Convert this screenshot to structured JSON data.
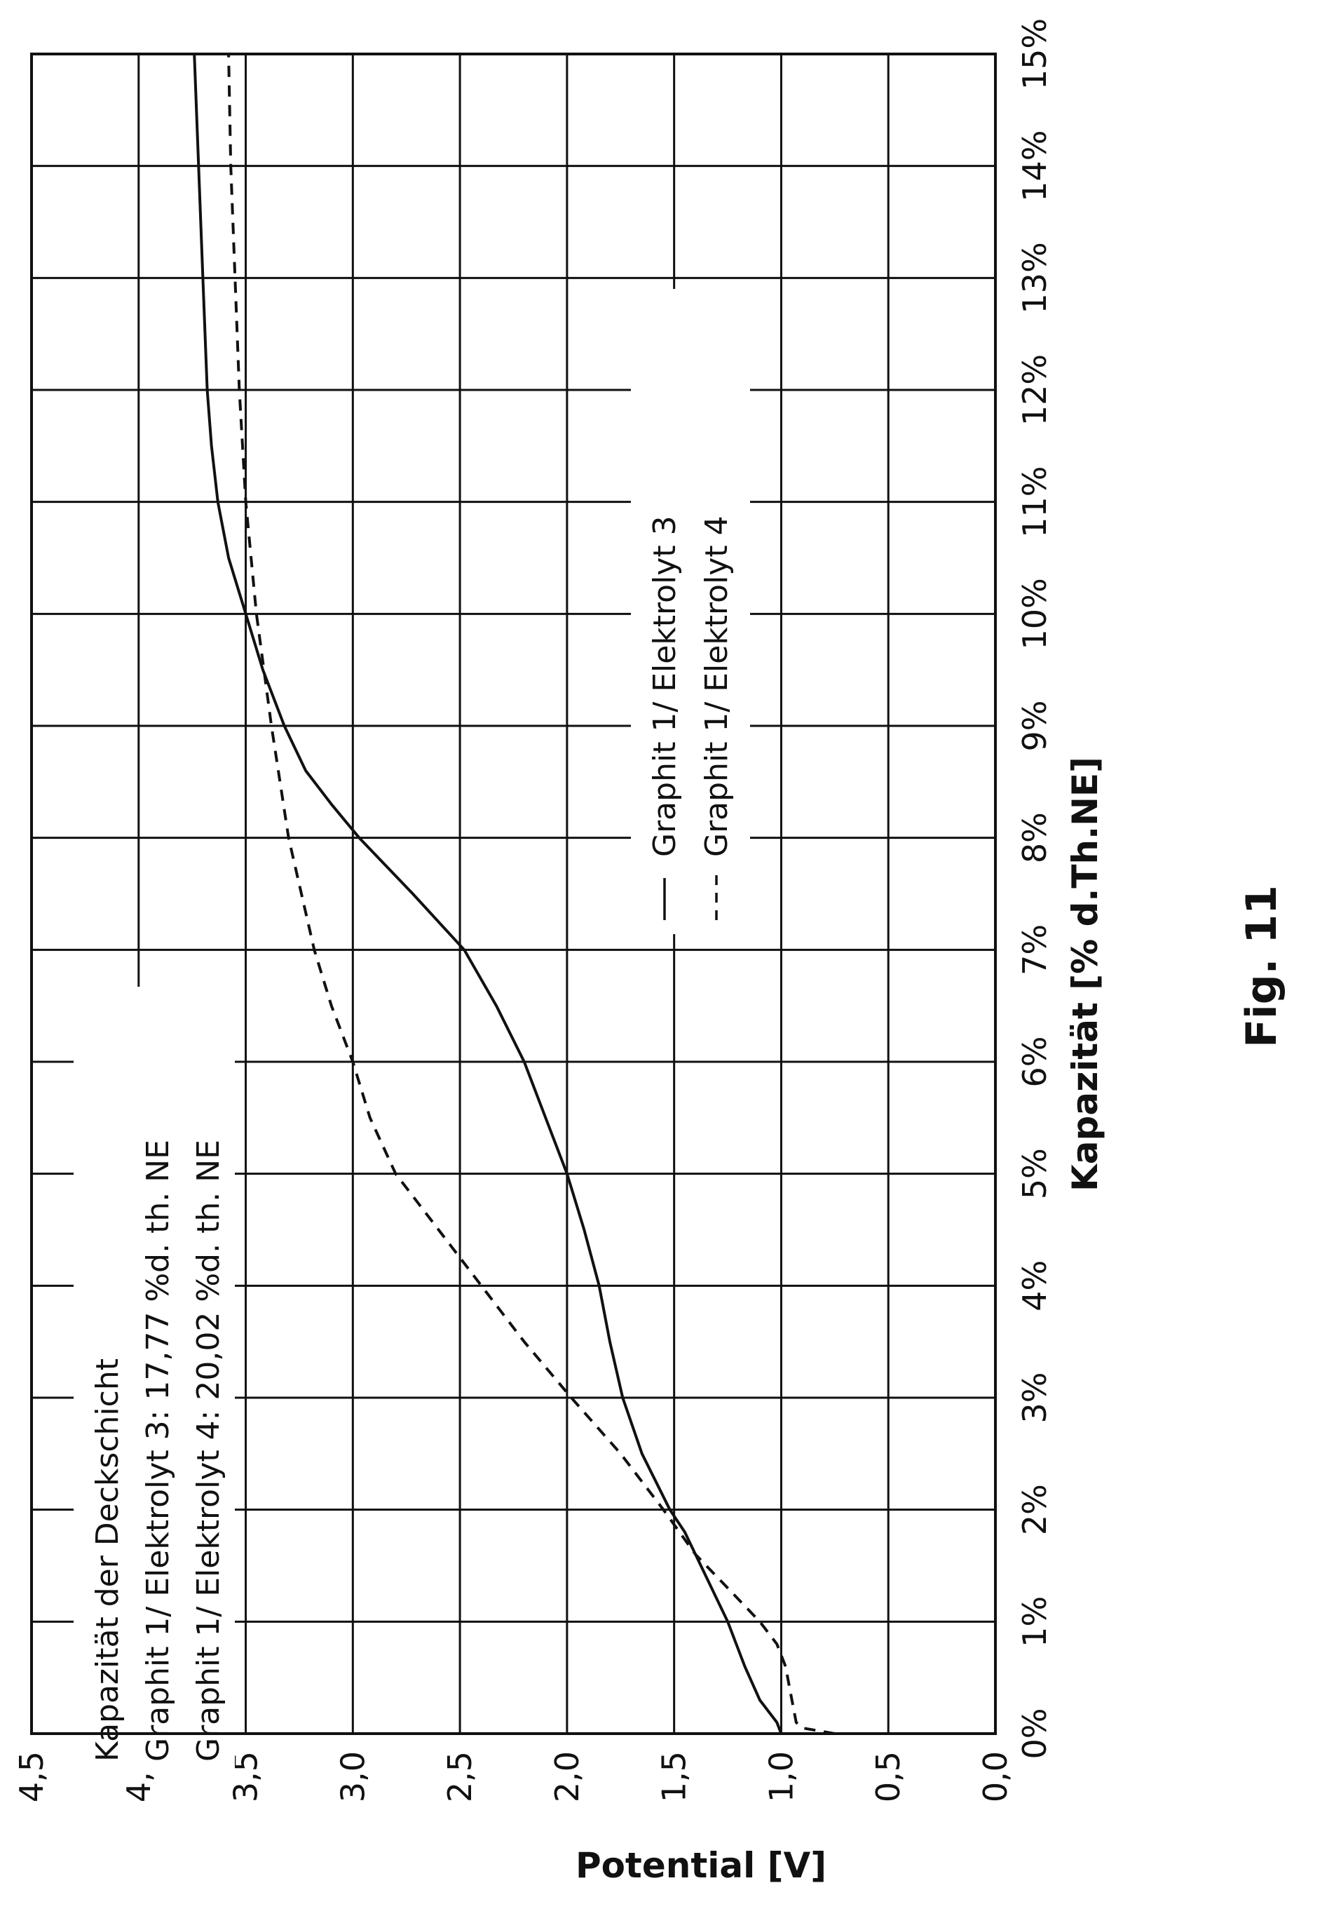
{
  "figure_label": "Fig. 11",
  "chart_data": {
    "type": "line",
    "orientation": "rotated 90° counter-clockwise (page portrait)",
    "xlabel": "Kapazität [% d.Th.NE]",
    "ylabel": "Potential [V]",
    "x_ticks": [
      "0%",
      "1%",
      "2%",
      "3%",
      "4%",
      "5%",
      "6%",
      "7%",
      "8%",
      "9%",
      "10%",
      "11%",
      "12%",
      "13%",
      "14%",
      "15%"
    ],
    "y_ticks": [
      "0,0",
      "0,5",
      "1,0",
      "1,5",
      "2,0",
      "2,5",
      "3,0",
      "3,5",
      "4,0",
      "4,5"
    ],
    "xlim": [
      0,
      15
    ],
    "ylim": [
      0,
      4.5
    ],
    "grid": true,
    "annotation": [
      "Kapazität der Deckschicht",
      "Graphit 1/ Elektrolyt 3:  17,77 %d. th. NE",
      "Graphit 1/ Elektrolyt 4:  20,02 %d. th. NE"
    ],
    "legend_position": "center",
    "series": [
      {
        "name": "Graphit 1/ Elektrolyt 3",
        "style": "solid",
        "x": [
          0,
          0.1,
          0.3,
          0.6,
          1.0,
          1.4,
          1.8,
          2.0,
          2.5,
          3.0,
          3.5,
          4.0,
          4.5,
          5.0,
          5.5,
          6.0,
          6.5,
          7.0,
          7.5,
          8.0,
          8.3,
          8.6,
          9.0,
          9.5,
          10.0,
          10.5,
          11.0,
          11.5,
          12.0,
          13.0,
          14.0,
          15.0
        ],
        "y": [
          1.0,
          1.02,
          1.1,
          1.17,
          1.25,
          1.35,
          1.45,
          1.52,
          1.65,
          1.74,
          1.8,
          1.85,
          1.92,
          2.0,
          2.1,
          2.2,
          2.33,
          2.48,
          2.72,
          2.97,
          3.1,
          3.22,
          3.32,
          3.42,
          3.5,
          3.58,
          3.63,
          3.66,
          3.68,
          3.7,
          3.72,
          3.74
        ]
      },
      {
        "name": "Graphit 1/ Elektrolyt 4",
        "style": "dashed",
        "x": [
          0,
          0.05,
          0.1,
          0.3,
          0.6,
          0.8,
          1.0,
          1.3,
          1.6,
          2.0,
          2.5,
          3.0,
          3.5,
          4.0,
          4.5,
          4.8,
          5.0,
          5.5,
          6.0,
          6.5,
          7.0,
          7.5,
          8.0,
          9.0,
          10.0,
          11.0,
          12.0,
          13.0,
          14.0,
          15.0
        ],
        "y": [
          0.75,
          0.9,
          0.93,
          0.95,
          0.98,
          1.02,
          1.1,
          1.25,
          1.4,
          1.55,
          1.75,
          1.98,
          2.2,
          2.4,
          2.6,
          2.72,
          2.8,
          2.92,
          3.0,
          3.1,
          3.18,
          3.24,
          3.3,
          3.38,
          3.45,
          3.5,
          3.53,
          3.55,
          3.57,
          3.58
        ]
      }
    ]
  }
}
